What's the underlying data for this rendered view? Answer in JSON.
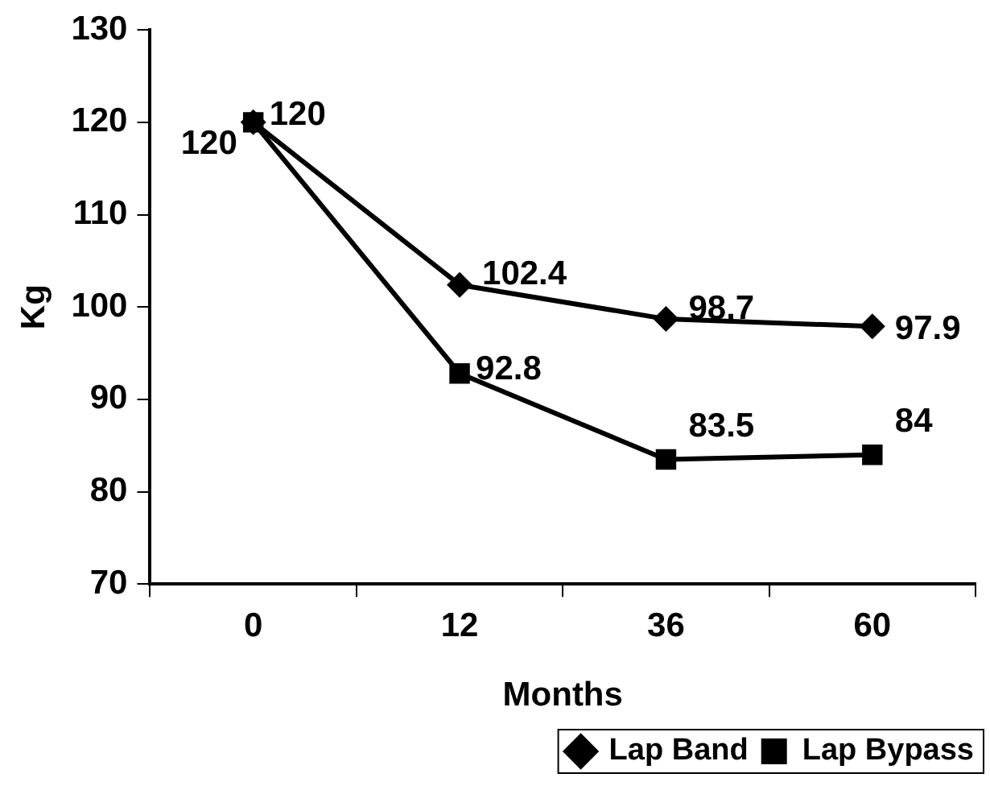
{
  "chart_data": {
    "type": "line",
    "xlabel": "Months",
    "ylabel": "Kg",
    "categories": [
      "0",
      "12",
      "36",
      "60"
    ],
    "series": [
      {
        "name": "Lap Band",
        "color": "#000000",
        "marker": "diamond",
        "values": [
          120,
          102.4,
          98.7,
          97.9
        ]
      },
      {
        "name": "Lap Bypass",
        "color": "#000000",
        "marker": "square",
        "values": [
          120,
          92.8,
          83.5,
          84
        ]
      }
    ],
    "ylim": [
      70,
      130
    ],
    "yticks": [
      70,
      80,
      90,
      100,
      110,
      120,
      130
    ],
    "grid": false,
    "legend": "bottom right",
    "data_labels": true,
    "line_style": "solid"
  }
}
